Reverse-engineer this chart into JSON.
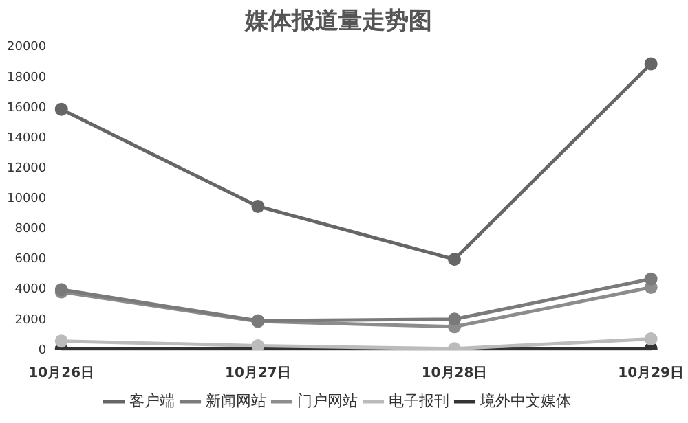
{
  "chart_data": {
    "type": "line",
    "title": "媒体报道量走势图",
    "categories": [
      "10月26日",
      "10月27日",
      "10月28日",
      "10月29日"
    ],
    "series": [
      {
        "name": "客户端",
        "color": "#666666",
        "values": [
          15900,
          9500,
          6000,
          18900
        ]
      },
      {
        "name": "新闻网站",
        "color": "#7a7a7a",
        "values": [
          4000,
          1950,
          2050,
          4700
        ]
      },
      {
        "name": "门户网站",
        "color": "#8c8c8c",
        "values": [
          3850,
          1900,
          1550,
          4150
        ]
      },
      {
        "name": "电子报刊",
        "color": "#bbbbbb",
        "values": [
          600,
          300,
          100,
          750
        ]
      },
      {
        "name": "境外中文媒体",
        "color": "#333333",
        "values": [
          100,
          100,
          50,
          100
        ]
      }
    ],
    "ylim": [
      0,
      20000
    ],
    "yticks": [
      0,
      2000,
      4000,
      6000,
      8000,
      10000,
      12000,
      14000,
      16000,
      18000,
      20000
    ],
    "grid": false,
    "legend": "bottom",
    "marker": "circle",
    "line_style": "solid"
  }
}
